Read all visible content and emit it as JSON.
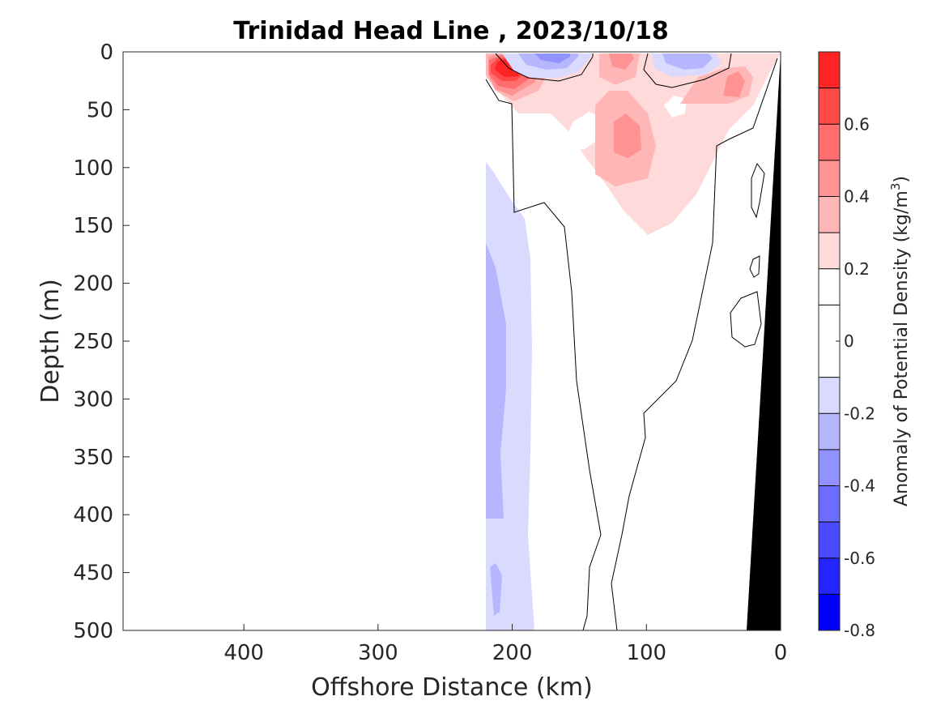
{
  "chart_data": {
    "type": "heatmap",
    "subtype": "filled-contour section",
    "title": "Trinidad Head Line , 2023/10/18",
    "xlabel": "Offshore Distance (km)",
    "ylabel": "Depth (m)",
    "x_axis_reversed": true,
    "xlim": [
      490,
      0
    ],
    "ylim": [
      0,
      500
    ],
    "y_axis_reversed": true,
    "xticks": [
      400,
      300,
      200,
      100,
      0
    ],
    "yticks": [
      0,
      50,
      100,
      150,
      200,
      250,
      300,
      350,
      400,
      450,
      500
    ],
    "colorbar": {
      "label_prefix": "Anomaly of Potential Density (kg/m",
      "label_exponent": "3",
      "label_suffix": ")",
      "range": [
        -0.8,
        0.8
      ],
      "levels": [
        -0.8,
        -0.7,
        -0.6,
        -0.5,
        -0.4,
        -0.3,
        -0.2,
        -0.1,
        0.1,
        0.2,
        0.3,
        0.4,
        0.5,
        0.6,
        0.7,
        0.8
      ],
      "ticks": [
        0.6,
        0.4,
        0.2,
        0,
        -0.2,
        -0.4,
        -0.6,
        -0.8
      ],
      "colors": [
        "#0000ff",
        "#2424ff",
        "#4949ff",
        "#6d6dff",
        "#9292ff",
        "#b6b6ff",
        "#dadaff",
        "#ffffff",
        "#ffffff",
        "#ffdada",
        "#ffb6b6",
        "#ff9292",
        "#ff6d6d",
        "#ff4949",
        "#ff2424",
        "#ff0000"
      ]
    },
    "data_extent_km": [
      0,
      220
    ],
    "bathymetry_fill": "#000000",
    "regions": [
      {
        "polarity": "positive",
        "level_max": 0.7,
        "core_location_km": 200,
        "core_depth_m": 45
      },
      {
        "polarity": "positive",
        "level_max": 0.4,
        "core_location_km": 120,
        "core_depth_m": 15
      },
      {
        "polarity": "positive",
        "level_max": 0.3,
        "core_location_km": 118,
        "core_depth_m": 75
      },
      {
        "polarity": "positive",
        "level_max": 0.4,
        "core_location_km": 33,
        "core_depth_m": 30
      },
      {
        "polarity": "negative",
        "level_min": -0.4,
        "core_location_km": 170,
        "core_depth_m": 3
      },
      {
        "polarity": "negative",
        "level_min": -0.3,
        "core_location_km": 75,
        "core_depth_m": 5
      },
      {
        "polarity": "negative",
        "level_min": -0.3,
        "core_location_km": 210,
        "core_depth_m": 300
      },
      {
        "polarity": "negative",
        "level_min": -0.3,
        "core_location_km": 215,
        "core_depth_m": 470
      }
    ]
  }
}
